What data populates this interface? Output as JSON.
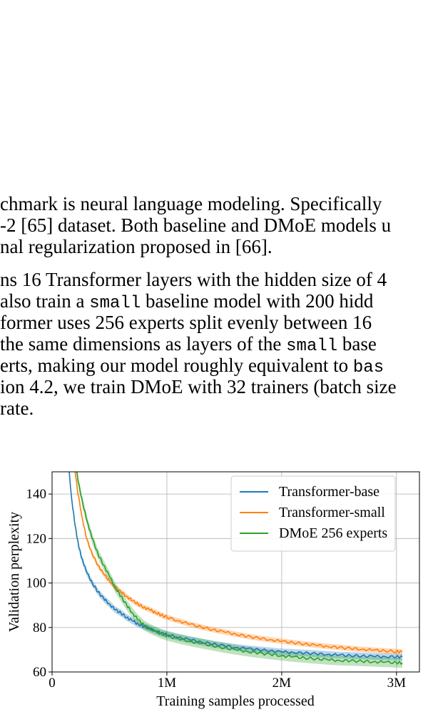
{
  "paper": {
    "p1": [
      {
        "parts": [
          {
            "t": "chmark is neural language modeling.  Specifically"
          }
        ]
      },
      {
        "parts": [
          {
            "t": "-2 [65] dataset. Both baseline and DMoE models u"
          }
        ]
      },
      {
        "parts": [
          {
            "t": "nal regularization proposed in [66]."
          }
        ]
      }
    ],
    "p2": [
      {
        "parts": [
          {
            "t": "ns 16 Transformer layers with the hidden size of 4"
          }
        ]
      },
      {
        "parts": [
          {
            "t": "also train a "
          },
          {
            "t": "small",
            "mono": true
          },
          {
            "t": " baseline model with 200 hidd"
          }
        ]
      },
      {
        "parts": [
          {
            "t": "former uses 256 experts split evenly between 16"
          }
        ]
      },
      {
        "parts": [
          {
            "t": "the same dimensions as layers of the "
          },
          {
            "t": "small",
            "mono": true
          },
          {
            "t": " base"
          }
        ]
      },
      {
        "parts": [
          {
            "t": "erts, making our model roughly equivalent to "
          },
          {
            "t": "bas",
            "mono": true
          }
        ]
      },
      {
        "parts": [
          {
            "t": "ion 4.2, we train DMoE with 32 trainers (batch size"
          }
        ]
      },
      {
        "parts": [
          {
            "t": " rate."
          }
        ]
      }
    ]
  },
  "chart_data": {
    "type": "line",
    "title": "",
    "xlabel": "Training samples processed",
    "ylabel": "Validation perplexity",
    "xlim": [
      0,
      3200000
    ],
    "ylim": [
      60,
      150
    ],
    "xticks": [
      {
        "v": 0,
        "label": "0"
      },
      {
        "v": 1000000,
        "label": "1M"
      },
      {
        "v": 2000000,
        "label": "2M"
      },
      {
        "v": 3000000,
        "label": "3M"
      }
    ],
    "yticks": [
      {
        "v": 60,
        "label": "60"
      },
      {
        "v": 80,
        "label": "80"
      },
      {
        "v": 100,
        "label": "100"
      },
      {
        "v": 120,
        "label": "120"
      },
      {
        "v": 140,
        "label": "140"
      }
    ],
    "grid": true,
    "legend_position": "top-right",
    "series": [
      {
        "name": "Transformer-base",
        "color": "#1f77b4",
        "band": 1.5,
        "points": [
          [
            140000,
            155
          ],
          [
            170000,
            138
          ],
          [
            200000,
            126
          ],
          [
            230000,
            117
          ],
          [
            260000,
            111
          ],
          [
            300000,
            105
          ],
          [
            350000,
            100
          ],
          [
            400000,
            96
          ],
          [
            450000,
            93
          ],
          [
            500000,
            90.5
          ],
          [
            550000,
            88
          ],
          [
            600000,
            86.5
          ],
          [
            650000,
            84.5
          ],
          [
            700000,
            83
          ],
          [
            750000,
            81.5
          ],
          [
            800000,
            80.5
          ],
          [
            850000,
            79.5
          ],
          [
            900000,
            78.5
          ],
          [
            950000,
            77.5
          ],
          [
            1000000,
            76.8
          ],
          [
            1100000,
            75.5
          ],
          [
            1200000,
            74.5
          ],
          [
            1300000,
            73.5
          ],
          [
            1400000,
            72.5
          ],
          [
            1500000,
            71.8
          ],
          [
            1600000,
            71
          ],
          [
            1700000,
            70.5
          ],
          [
            1800000,
            70
          ],
          [
            1900000,
            69.5
          ],
          [
            2000000,
            69
          ],
          [
            2100000,
            68.8
          ],
          [
            2200000,
            68.5
          ],
          [
            2300000,
            68.2
          ],
          [
            2400000,
            67.9
          ],
          [
            2500000,
            67.6
          ],
          [
            2600000,
            67.4
          ],
          [
            2700000,
            67.2
          ],
          [
            2800000,
            67
          ],
          [
            2900000,
            66.9
          ],
          [
            3000000,
            66.8
          ],
          [
            3050000,
            66.7
          ]
        ]
      },
      {
        "name": "Transformer-small",
        "color": "#ff7f0e",
        "band": 1.2,
        "points": [
          [
            190000,
            155
          ],
          [
            220000,
            142
          ],
          [
            260000,
            130
          ],
          [
            300000,
            120
          ],
          [
            350000,
            113
          ],
          [
            400000,
            108
          ],
          [
            450000,
            104
          ],
          [
            500000,
            101
          ],
          [
            550000,
            98
          ],
          [
            600000,
            96
          ],
          [
            650000,
            94
          ],
          [
            700000,
            92
          ],
          [
            750000,
            90.5
          ],
          [
            800000,
            89
          ],
          [
            850000,
            88
          ],
          [
            900000,
            86.8
          ],
          [
            950000,
            85.6
          ],
          [
            1000000,
            84.6
          ],
          [
            1100000,
            83
          ],
          [
            1200000,
            81.5
          ],
          [
            1300000,
            80.2
          ],
          [
            1400000,
            79
          ],
          [
            1500000,
            78
          ],
          [
            1600000,
            77
          ],
          [
            1700000,
            76
          ],
          [
            1800000,
            75.2
          ],
          [
            1900000,
            74.5
          ],
          [
            2000000,
            73.8
          ],
          [
            2100000,
            73.2
          ],
          [
            2200000,
            72.6
          ],
          [
            2300000,
            72
          ],
          [
            2400000,
            71.5
          ],
          [
            2500000,
            71
          ],
          [
            2600000,
            70.6
          ],
          [
            2700000,
            70.2
          ],
          [
            2800000,
            69.8
          ],
          [
            2900000,
            69.5
          ],
          [
            3000000,
            69.2
          ],
          [
            3050000,
            69
          ]
        ]
      },
      {
        "name": "DMoE 256 experts",
        "color": "#2ca02c",
        "band": 2.2,
        "points": [
          [
            200000,
            155
          ],
          [
            230000,
            145
          ],
          [
            270000,
            135
          ],
          [
            310000,
            127
          ],
          [
            350000,
            120
          ],
          [
            400000,
            113
          ],
          [
            450000,
            108
          ],
          [
            500000,
            103
          ],
          [
            550000,
            98
          ],
          [
            600000,
            94
          ],
          [
            650000,
            90
          ],
          [
            700000,
            86.5
          ],
          [
            750000,
            83.5
          ],
          [
            800000,
            81
          ],
          [
            850000,
            79.5
          ],
          [
            900000,
            78.3
          ],
          [
            950000,
            77.2
          ],
          [
            1000000,
            76.3
          ],
          [
            1100000,
            75
          ],
          [
            1200000,
            73.8
          ],
          [
            1300000,
            72.8
          ],
          [
            1400000,
            71.8
          ],
          [
            1500000,
            70.8
          ],
          [
            1600000,
            70
          ],
          [
            1700000,
            69.2
          ],
          [
            1800000,
            68.5
          ],
          [
            1900000,
            67.9
          ],
          [
            2000000,
            67.3
          ],
          [
            2100000,
            66.8
          ],
          [
            2200000,
            66.3
          ],
          [
            2300000,
            65.9
          ],
          [
            2400000,
            65.5
          ],
          [
            2500000,
            65.2
          ],
          [
            2600000,
            65
          ],
          [
            2700000,
            64.8
          ],
          [
            2800000,
            64.6
          ],
          [
            2900000,
            64.4
          ],
          [
            3000000,
            64.2
          ],
          [
            3050000,
            64.1
          ]
        ]
      }
    ]
  }
}
